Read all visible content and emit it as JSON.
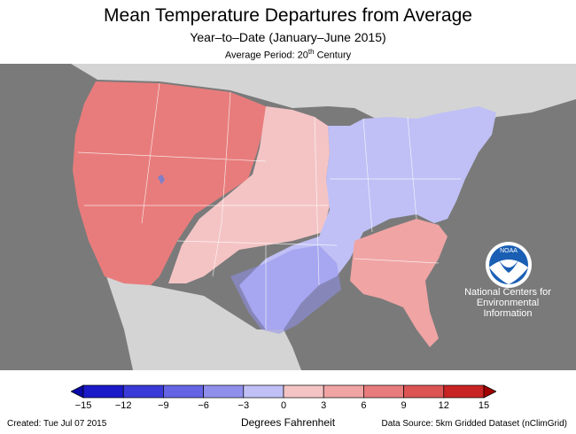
{
  "header": {
    "title": "Mean Temperature Departures from Average",
    "subtitle": "Year–to–Date (January–June 2015)",
    "avg_period_prefix": "Average Period: 20",
    "avg_period_sup": "th",
    "avg_period_suffix": " Century"
  },
  "branding": {
    "logo_text": "NOAA",
    "line1": "National Centers for",
    "line2": "Environmental",
    "line3": "Information"
  },
  "legend": {
    "title": "Degrees Fahrenheit",
    "ticks": [
      "−15",
      "−12",
      "−9",
      "−6",
      "−3",
      "0",
      "3",
      "6",
      "9",
      "12",
      "15"
    ],
    "colors": [
      "#1a1ac8",
      "#3a3ad8",
      "#6464e4",
      "#9090ec",
      "#c0c0f6",
      "#f4c4c4",
      "#f0a4a4",
      "#e87c7c",
      "#dc5454",
      "#c82424"
    ]
  },
  "footer": {
    "created": "Created: Tue Jul 07 2015",
    "source": "Data Source: 5km Gridded Dataset (nClimGrid)"
  },
  "map_colors": {
    "ocean": "#7a7a7a",
    "land_other": "#d4d4d4",
    "warm_strong": "#e87c7c",
    "warm_mid": "#f0a4a4",
    "warm_light": "#f4c4c4",
    "cool_light": "#c0c0f6",
    "cool_mid": "#9090ec"
  }
}
